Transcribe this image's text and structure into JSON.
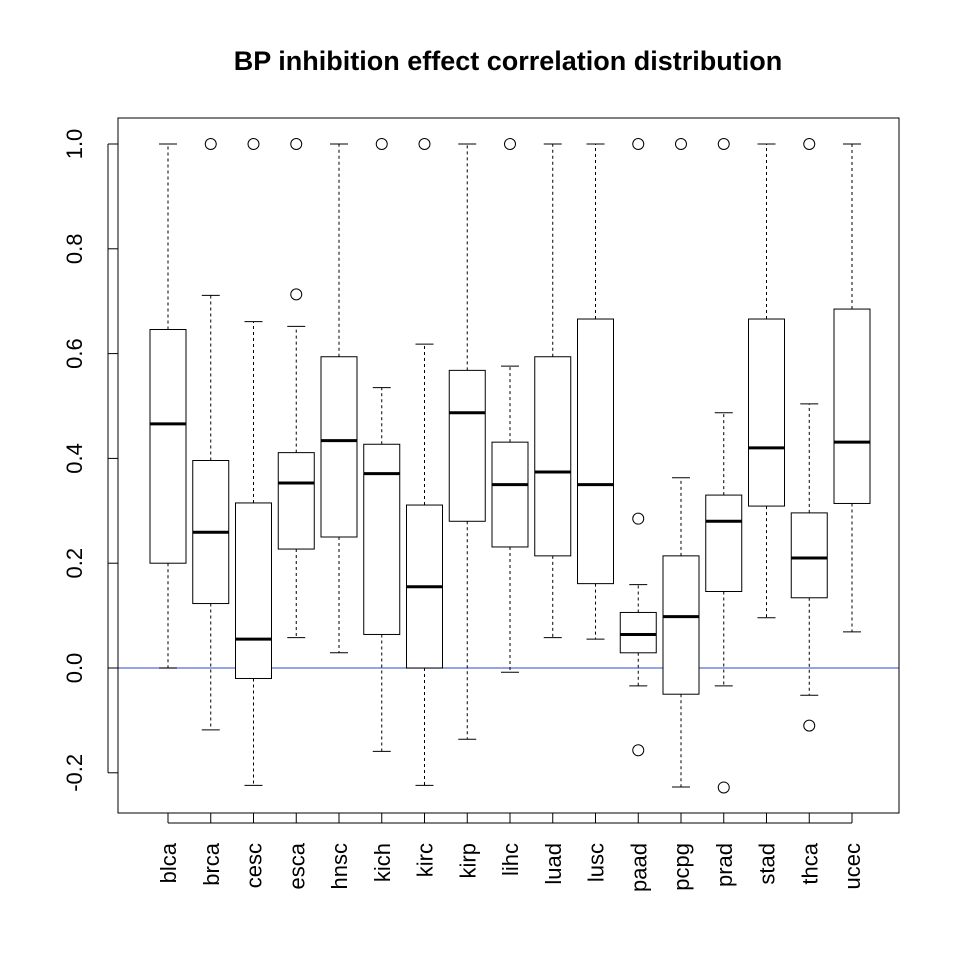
{
  "chart_data": {
    "type": "boxplot",
    "title": "BP inhibition effect correlation distribution",
    "xlabel": "",
    "ylabel": "",
    "ylim": [
      -0.277,
      1.05
    ],
    "yticks": [
      -0.2,
      0.0,
      0.2,
      0.4,
      0.6,
      0.8,
      1.0
    ],
    "ytick_labels": [
      "-0.2",
      "0.0",
      "0.2",
      "0.4",
      "0.6",
      "0.8",
      "1.0"
    ],
    "grid": false,
    "reference_line": {
      "y": 0.0,
      "color": "#5b6bd6"
    },
    "categories": [
      "blca",
      "brca",
      "cesc",
      "esca",
      "hnsc",
      "kich",
      "kirc",
      "kirp",
      "lihc",
      "luad",
      "lusc",
      "paad",
      "pcpg",
      "prad",
      "stad",
      "thca",
      "ucec"
    ],
    "boxes": [
      {
        "category": "blca",
        "whisker_low": 0.0,
        "q1": 0.2,
        "median": 0.466,
        "q3": 0.646,
        "whisker_high": 1.0,
        "outliers": []
      },
      {
        "category": "brca",
        "whisker_low": -0.118,
        "q1": 0.123,
        "median": 0.259,
        "q3": 0.396,
        "whisker_high": 0.711,
        "outliers": [
          1.0
        ]
      },
      {
        "category": "cesc",
        "whisker_low": -0.224,
        "q1": -0.02,
        "median": 0.055,
        "q3": 0.315,
        "whisker_high": 0.661,
        "outliers": [
          1.0
        ]
      },
      {
        "category": "esca",
        "whisker_low": 0.058,
        "q1": 0.227,
        "median": 0.353,
        "q3": 0.411,
        "whisker_high": 0.652,
        "outliers": [
          0.713,
          1.0
        ]
      },
      {
        "category": "hnsc",
        "whisker_low": 0.029,
        "q1": 0.25,
        "median": 0.434,
        "q3": 0.594,
        "whisker_high": 1.0,
        "outliers": []
      },
      {
        "category": "kich",
        "whisker_low": -0.159,
        "q1": 0.064,
        "median": 0.371,
        "q3": 0.427,
        "whisker_high": 0.535,
        "outliers": [
          1.0
        ]
      },
      {
        "category": "kirc",
        "whisker_low": -0.224,
        "q1": 0.0,
        "median": 0.155,
        "q3": 0.311,
        "whisker_high": 0.618,
        "outliers": [
          1.0
        ]
      },
      {
        "category": "kirp",
        "whisker_low": -0.136,
        "q1": 0.28,
        "median": 0.487,
        "q3": 0.568,
        "whisker_high": 1.0,
        "outliers": []
      },
      {
        "category": "lihc",
        "whisker_low": -0.008,
        "q1": 0.231,
        "median": 0.35,
        "q3": 0.431,
        "whisker_high": 0.576,
        "outliers": [
          1.0
        ]
      },
      {
        "category": "luad",
        "whisker_low": 0.058,
        "q1": 0.214,
        "median": 0.374,
        "q3": 0.594,
        "whisker_high": 1.0,
        "outliers": []
      },
      {
        "category": "lusc",
        "whisker_low": 0.055,
        "q1": 0.161,
        "median": 0.35,
        "q3": 0.666,
        "whisker_high": 1.0,
        "outliers": []
      },
      {
        "category": "paad",
        "whisker_low": -0.034,
        "q1": 0.029,
        "median": 0.064,
        "q3": 0.106,
        "whisker_high": 0.159,
        "outliers": [
          0.285,
          -0.157,
          1.0
        ]
      },
      {
        "category": "pcpg",
        "whisker_low": -0.227,
        "q1": -0.05,
        "median": 0.098,
        "q3": 0.214,
        "whisker_high": 0.363,
        "outliers": [
          1.0
        ]
      },
      {
        "category": "prad",
        "whisker_low": -0.034,
        "q1": 0.146,
        "median": 0.28,
        "q3": 0.33,
        "whisker_high": 0.487,
        "outliers": [
          -0.228,
          1.0
        ]
      },
      {
        "category": "stad",
        "whisker_low": 0.096,
        "q1": 0.309,
        "median": 0.42,
        "q3": 0.666,
        "whisker_high": 1.0,
        "outliers": []
      },
      {
        "category": "thca",
        "whisker_low": -0.052,
        "q1": 0.134,
        "median": 0.21,
        "q3": 0.296,
        "whisker_high": 0.504,
        "outliers": [
          -0.11,
          1.0
        ]
      },
      {
        "category": "ucec",
        "whisker_low": 0.069,
        "q1": 0.314,
        "median": 0.431,
        "q3": 0.685,
        "whisker_high": 1.0,
        "outliers": []
      }
    ]
  }
}
